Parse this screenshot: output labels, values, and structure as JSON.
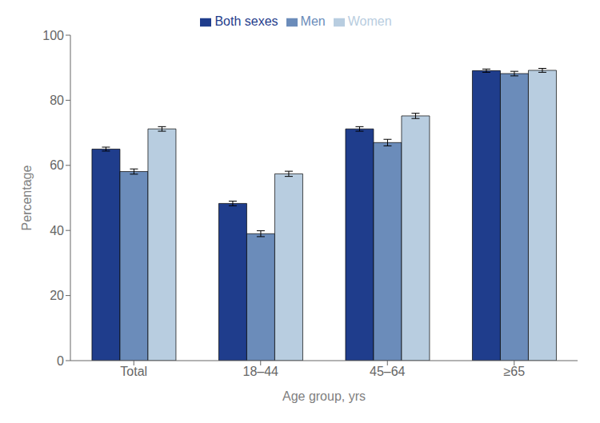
{
  "chart_data": {
    "type": "bar",
    "categories": [
      "Total",
      "18–44",
      "45–64",
      "≥65"
    ],
    "series": [
      {
        "name": "Both sexes",
        "color": "#1f3d8c",
        "values": [
          65.0,
          48.3,
          71.2,
          89.1
        ],
        "errors": [
          0.6,
          0.7,
          0.7,
          0.5
        ]
      },
      {
        "name": "Men",
        "color": "#6b8cba",
        "values": [
          58.1,
          39.0,
          67.0,
          88.2
        ],
        "errors": [
          0.8,
          0.9,
          1.0,
          0.7
        ]
      },
      {
        "name": "Women",
        "color": "#b8cde0",
        "values": [
          71.2,
          57.4,
          75.2,
          89.2
        ],
        "errors": [
          0.7,
          0.8,
          0.8,
          0.6
        ]
      }
    ],
    "xlabel": "Age group, yrs",
    "ylabel": "Percentage",
    "ylim": [
      0,
      100
    ],
    "yticks": [
      0,
      20,
      40,
      60,
      80,
      100
    ],
    "grid": false,
    "legend": "top"
  }
}
